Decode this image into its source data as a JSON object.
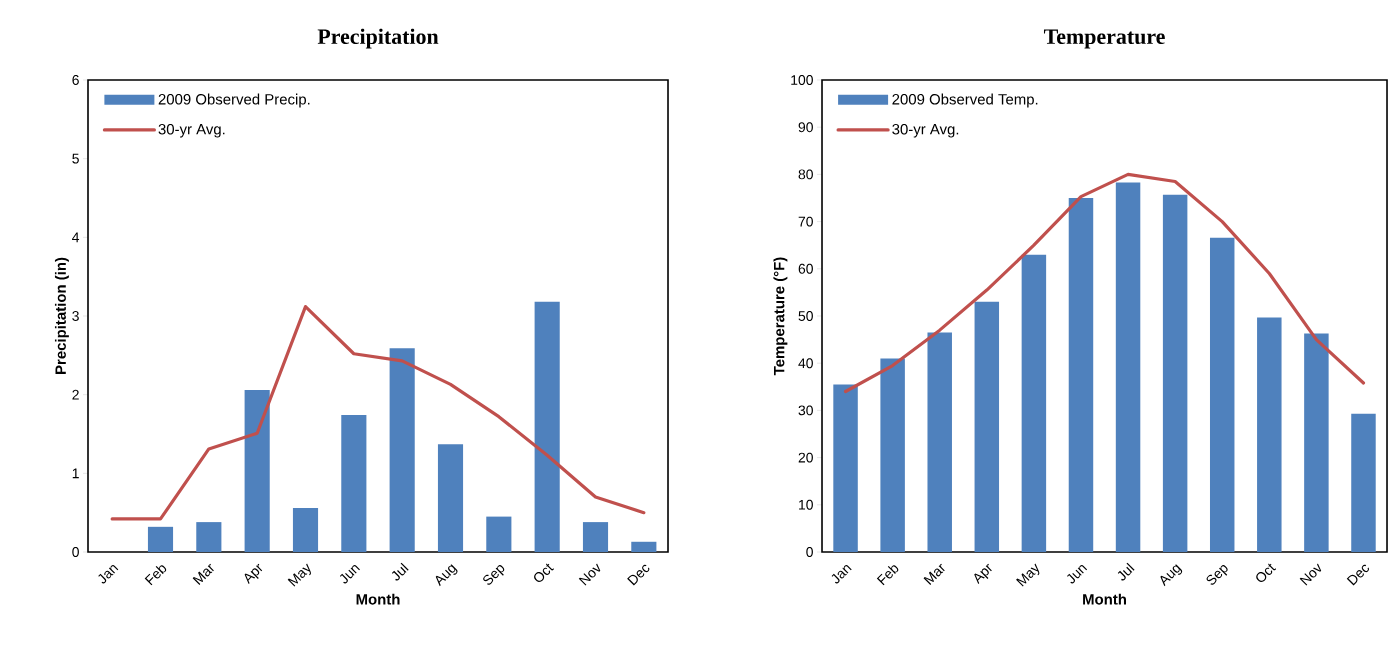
{
  "chart_data": [
    {
      "type": "bar",
      "title": "Precipitation",
      "xlabel": "Month",
      "ylabel": "Precipitation (in)",
      "categories": [
        "Jan",
        "Feb",
        "Mar",
        "Apr",
        "May",
        "Jun",
        "Jul",
        "Aug",
        "Sep",
        "Oct",
        "Nov",
        "Dec"
      ],
      "series": [
        {
          "name": "2009 Observed Precip.",
          "color": "#4f81bd",
          "values": [
            0,
            0.32,
            0.38,
            2.06,
            0.56,
            1.74,
            2.59,
            1.37,
            0.45,
            3.18,
            0.38,
            0.13
          ]
        },
        {
          "name": "30-yr Avg.",
          "type": "line",
          "color": "#c0504d",
          "values": [
            0.42,
            0.42,
            1.31,
            1.51,
            3.12,
            2.52,
            2.43,
            2.13,
            1.72,
            1.23,
            0.7,
            0.5
          ]
        }
      ],
      "ylim": [
        0,
        6
      ],
      "yticks": [
        0,
        1,
        2,
        3,
        4,
        5,
        6
      ],
      "legend": "top left"
    },
    {
      "type": "bar",
      "title": "Temperature",
      "xlabel": "Month",
      "ylabel": "Temperature (°F)",
      "categories": [
        "Jan",
        "Feb",
        "Mar",
        "Apr",
        "May",
        "Jun",
        "Jul",
        "Aug",
        "Sep",
        "Oct",
        "Nov",
        "Dec"
      ],
      "series": [
        {
          "name": "2009 Observed Temp.",
          "color": "#4f81bd",
          "values": [
            35.5,
            41,
            46.5,
            53,
            63,
            75,
            78.3,
            75.7,
            66.6,
            49.7,
            46.3,
            29.3
          ]
        },
        {
          "name": "30-yr Avg.",
          "type": "line",
          "color": "#c0504d",
          "values": [
            34,
            39.5,
            47,
            55.5,
            65,
            75.3,
            80,
            78.5,
            70,
            59,
            45,
            35.8
          ]
        }
      ],
      "ylim": [
        0,
        100
      ],
      "yticks": [
        0,
        10,
        20,
        30,
        40,
        50,
        60,
        70,
        80,
        90,
        100
      ],
      "legend": "top left"
    }
  ]
}
